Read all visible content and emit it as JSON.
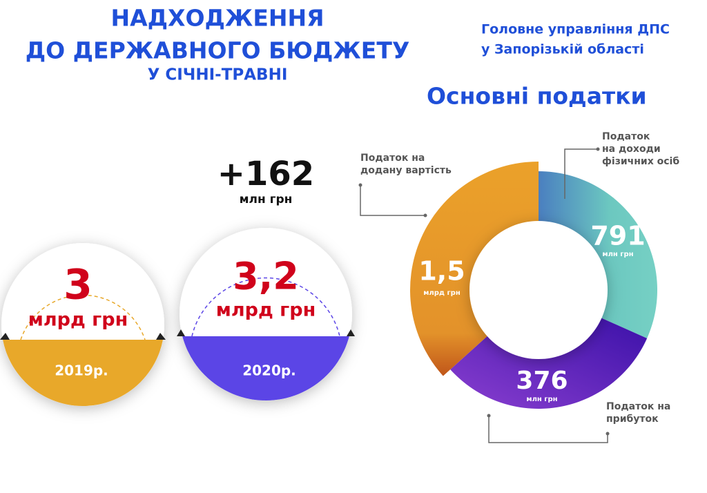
{
  "header": {
    "title_lines": [
      "НАДХОДЖЕННЯ",
      "ДО ДЕРЖАВНОГО БЮДЖЕТУ",
      "У СІЧНІ-ТРАВНІ"
    ],
    "organization_lines": [
      "Головне управління ДПС",
      "у Запорізькій області"
    ]
  },
  "comparison": {
    "difference": "+162",
    "difference_unit": "млн грн",
    "years": [
      {
        "value": "3",
        "unit": "млрд грн",
        "year": "2019р."
      },
      {
        "value": "3,2",
        "unit": "млрд грн",
        "year": "2020р."
      }
    ]
  },
  "taxes": {
    "title": "Основні податки",
    "items": [
      {
        "name_lines": [
          "Податок",
          "на доходи",
          "фізичних осіб"
        ],
        "value": "791",
        "unit": "млн грн"
      },
      {
        "name_lines": [
          "Податок на",
          "прибуток"
        ],
        "value": "376",
        "unit": "млн грн"
      },
      {
        "name_lines": [
          "Податок на",
          "додану вартість"
        ],
        "value": "1,5",
        "unit": "млрд грн"
      }
    ]
  }
}
